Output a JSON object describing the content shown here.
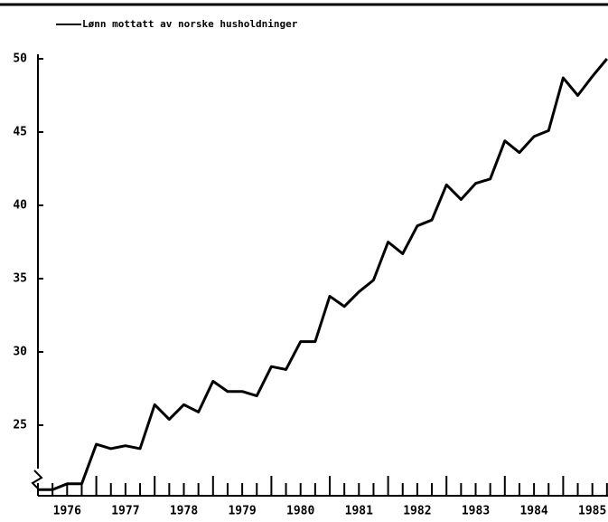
{
  "chart_data": {
    "type": "line",
    "legend": "Lønn mottatt av norske husholdninger",
    "categories": [
      null,
      null,
      "1976",
      null,
      null,
      null,
      "1977",
      null,
      null,
      null,
      "1978",
      null,
      null,
      null,
      "1979",
      null,
      null,
      null,
      "1980",
      null,
      null,
      null,
      "1981",
      null,
      null,
      null,
      "1982",
      null,
      null,
      null,
      "1983",
      null,
      null,
      null,
      "1984",
      null,
      null,
      null,
      "1985",
      null
    ],
    "values": [
      20.6,
      20.6,
      21.0,
      21.0,
      23.7,
      23.4,
      23.6,
      23.4,
      26.4,
      25.4,
      26.4,
      25.9,
      28.0,
      27.3,
      27.3,
      27.0,
      29.0,
      28.8,
      30.7,
      30.7,
      33.8,
      33.1,
      34.1,
      34.9,
      37.5,
      36.7,
      38.6,
      39.0,
      41.4,
      40.4,
      41.5,
      41.8,
      44.4,
      43.6,
      44.7,
      45.1,
      48.7,
      47.5,
      48.8,
      50.0
    ],
    "color": "#000000",
    "ylim": [
      20,
      50
    ],
    "yticks": [
      25,
      30,
      35,
      40,
      45,
      50
    ],
    "grid": false
  }
}
